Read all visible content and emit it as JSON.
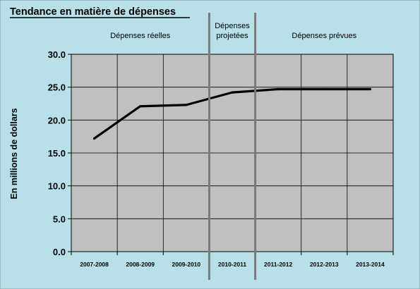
{
  "chart_data": {
    "type": "line",
    "title": "Tendance en matière de dépenses",
    "ylabel": "En millions de dollars",
    "xlabel": "",
    "categories": [
      "2007-2008",
      "2008-2009",
      "2009-2010",
      "2010-2011",
      "2011-2012",
      "2012-2013",
      "2013-2014"
    ],
    "series": [
      {
        "values": [
          17.2,
          22.1,
          22.3,
          24.2,
          24.7,
          24.7,
          24.7
        ]
      }
    ],
    "ylim": [
      0,
      30
    ],
    "yticks": [
      "0.0",
      "5.0",
      "10.0",
      "15.0",
      "20.0",
      "25.0",
      "30.0"
    ],
    "grid": true,
    "legend": "none",
    "sections": [
      {
        "label_lines": [
          "Dépenses réelles"
        ],
        "category_range": [
          0,
          2
        ]
      },
      {
        "label_lines": [
          "Dépenses",
          "projetées"
        ],
        "category_range": [
          3,
          3
        ]
      },
      {
        "label_lines": [
          "Dépenses prévues"
        ],
        "category_range": [
          4,
          6
        ]
      }
    ],
    "colors": {
      "background": "#b7e0e8",
      "plot_area": "#c0c0c0",
      "line": "#000000",
      "gridline": "#000000",
      "divider": "#7a7a7a"
    }
  }
}
